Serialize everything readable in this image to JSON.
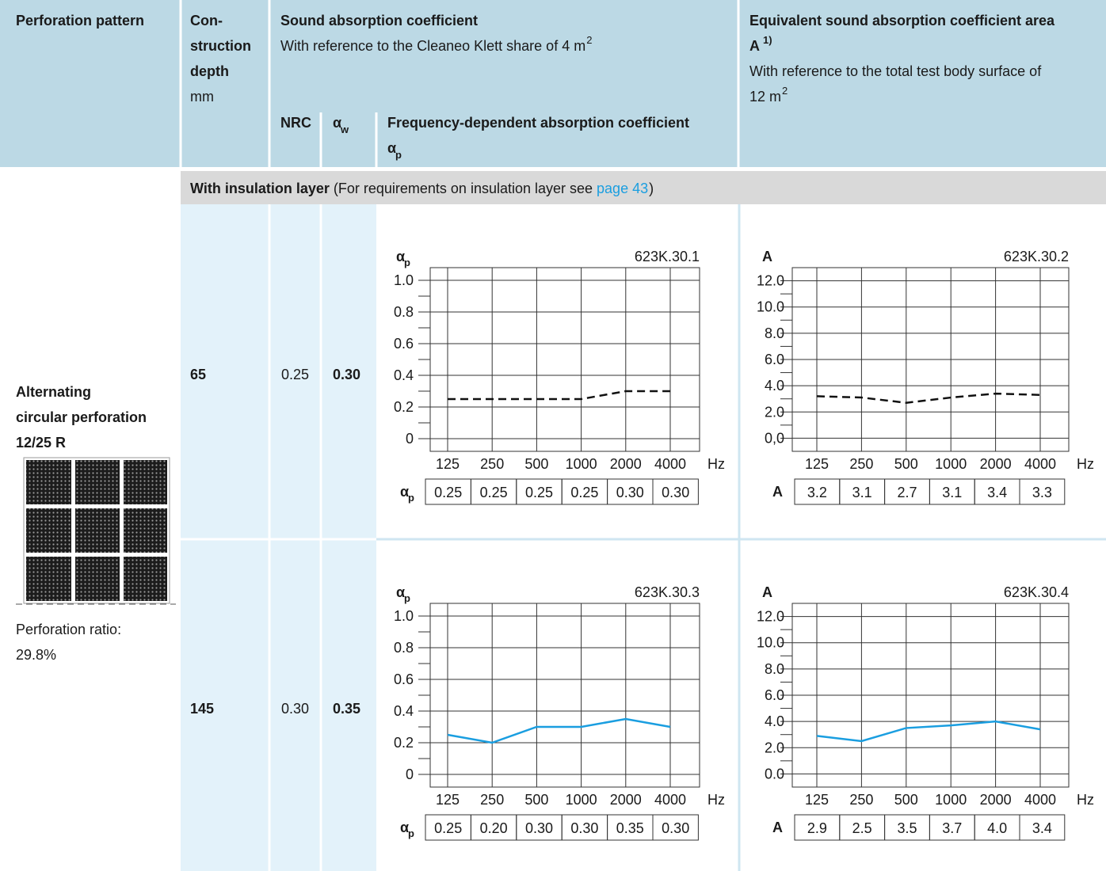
{
  "header": {
    "pattern": "Perforation pattern",
    "depth": [
      "Con-",
      "struction",
      "depth"
    ],
    "depth_unit": "mm",
    "absorption": "Sound absorption coefficient",
    "absorption_ref": "With reference to the Cleaneo Klett share of 4 m",
    "absorption_ref_sup": "2",
    "nrc": "NRC",
    "alpha_w": "α",
    "alpha_w_sub": "w",
    "frequency": "Frequency-dependent absorption coefficient",
    "alpha_p": "α",
    "alpha_p_sub": "p",
    "area": "Equivalent sound absorption coefficient area",
    "area_symbol": "A",
    "area_sup": "1)",
    "area_ref": "With reference to the total test body surface of",
    "area_ref2": "12 m",
    "area_ref2_sup": "2"
  },
  "section": {
    "bold": "With insulation layer",
    "text": "(For requirements on insulation layer see",
    "link": "page 43",
    "close": ")"
  },
  "pattern": {
    "name": [
      "Alternating",
      "circular perforation",
      "12/25 R"
    ],
    "ratio_label": "Perforation ratio:",
    "ratio": "29.8%"
  },
  "rows": [
    {
      "depth": "65",
      "nrc": "0.25",
      "alpha_w": "0.30",
      "charts": [
        {
          "type": "line",
          "y_label": "α",
          "y_label_sub": "p",
          "code": "623K.30.1",
          "categories": [
            "125",
            "250",
            "500",
            "1000",
            "2000",
            "4000"
          ],
          "x_unit": "Hz",
          "ylim": [
            -0.08,
            1.08
          ],
          "yticks": [
            0,
            0.2,
            0.4,
            0.6,
            0.8,
            {
              "value": 1,
              "label": "1.0"
            }
          ],
          "minor_yticks": [
            0.1,
            0.3,
            0.5,
            0.7,
            0.9
          ],
          "values": [
            0.25,
            0.25,
            0.25,
            0.25,
            0.3,
            0.3
          ],
          "value_labels": [
            "0.25",
            "0.25",
            "0.25",
            "0.25",
            "0.30",
            "0.30"
          ],
          "color": "#111111",
          "line_style": "dashed",
          "table_label": "α",
          "table_label_sub": "p"
        },
        {
          "type": "line",
          "y_label": "A",
          "code": "623K.30.2",
          "categories": [
            "125",
            "250",
            "500",
            "1000",
            "2000",
            "4000"
          ],
          "x_unit": "Hz",
          "ylim": [
            -1,
            13
          ],
          "yticks": [
            {
              "value": 0,
              "label": "0,0"
            },
            {
              "value": 2,
              "label": "2.0"
            },
            {
              "value": 4,
              "label": "4.0"
            },
            {
              "value": 6,
              "label": "6.0"
            },
            {
              "value": 8,
              "label": "8.0"
            },
            {
              "value": 10,
              "label": "10.0"
            },
            {
              "value": 12,
              "label": "12.0"
            }
          ],
          "minor_yticks": [
            1,
            3,
            5,
            7,
            9,
            11
          ],
          "values": [
            3.2,
            3.1,
            2.7,
            3.1,
            3.4,
            3.3
          ],
          "color": "#111111",
          "line_style": "dashed",
          "table_label": "A"
        }
      ]
    },
    {
      "depth": "145",
      "nrc": "0.30",
      "alpha_w": "0.35",
      "charts": [
        {
          "type": "line",
          "y_label": "α",
          "y_label_sub": "p",
          "code": "623K.30.3",
          "categories": [
            "125",
            "250",
            "500",
            "1000",
            "2000",
            "4000"
          ],
          "x_unit": "Hz",
          "ylim": [
            -0.08,
            1.08
          ],
          "yticks": [
            0,
            0.2,
            0.4,
            0.6,
            0.8,
            {
              "value": 1,
              "label": "1.0"
            }
          ],
          "minor_yticks": [
            0.1,
            0.3,
            0.5,
            0.7,
            0.9
          ],
          "values": [
            0.25,
            0.2,
            0.3,
            0.3,
            0.35,
            0.3
          ],
          "value_labels": [
            "0.25",
            "0.20",
            "0.30",
            "0.30",
            "0.35",
            "0.30"
          ],
          "color": "#1a9ee0",
          "line_style": "solid",
          "table_label": "α",
          "table_label_sub": "p"
        },
        {
          "type": "line",
          "y_label": "A",
          "code": "623K.30.4",
          "categories": [
            "125",
            "250",
            "500",
            "1000",
            "2000",
            "4000"
          ],
          "x_unit": "Hz",
          "ylim": [
            -1,
            13
          ],
          "yticks": [
            {
              "value": 0,
              "label": "0.0"
            },
            {
              "value": 2,
              "label": "2.0"
            },
            {
              "value": 4,
              "label": "4.0"
            },
            {
              "value": 6,
              "label": "6.0"
            },
            {
              "value": 8,
              "label": "8.0"
            },
            {
              "value": 10,
              "label": "10.0"
            },
            {
              "value": 12,
              "label": "12.0"
            }
          ],
          "minor_yticks": [
            1,
            3,
            5,
            7,
            9,
            11
          ],
          "values": [
            2.9,
            2.5,
            3.5,
            3.7,
            4,
            3.4
          ],
          "value_labels": [
            "2.9",
            "2.5",
            "3.5",
            "3.7",
            "4.0",
            "3.4"
          ],
          "color": "#1a9ee0",
          "line_style": "solid",
          "table_label": "A"
        }
      ]
    }
  ]
}
